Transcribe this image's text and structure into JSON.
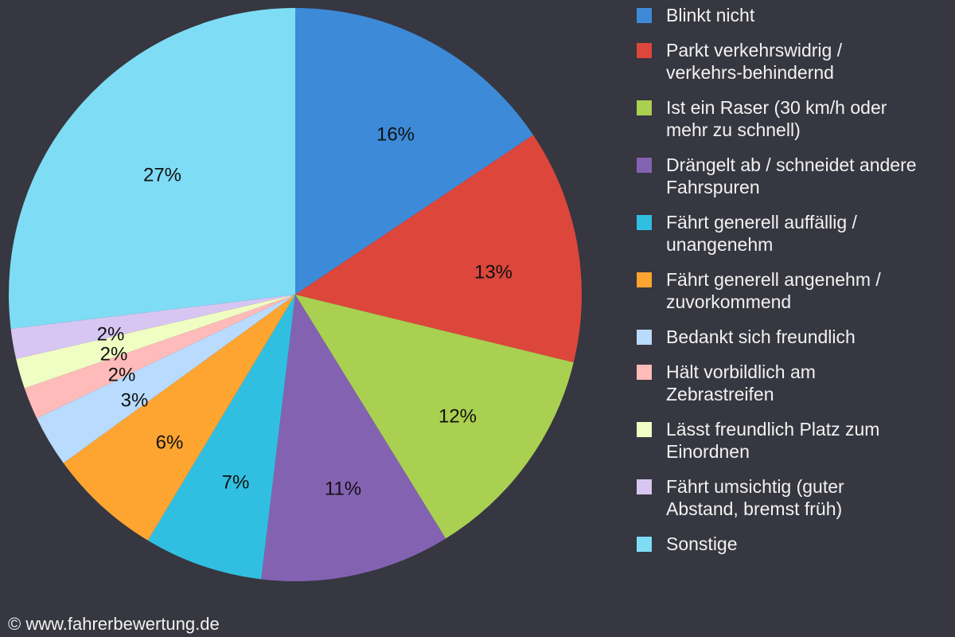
{
  "chart_data": {
    "type": "pie",
    "title": "",
    "start_angle": "12 o'clock, clockwise",
    "categories": [
      "Blinkt nicht",
      "Parkt verkehrswidrig / verkehrs-behindernd",
      "Ist ein Raser (30 km/h oder mehr zu schnell)",
      "Drängelt ab / schneidet andere Fahrspuren",
      "Fährt generell auffällig / unangenehm",
      "Fährt generell angenehm / zuvorkommend",
      "Bedankt sich freundlich",
      "Hält vorbildlich am Zebrastreifen",
      "Lässt freundlich Platz zum Einordnen",
      "Fährt umsichtig (guter Abstand, bremst früh)",
      "Sonstige"
    ],
    "values": [
      15.6,
      13.2,
      12.4,
      10.7,
      6.7,
      6.4,
      2.9,
      1.8,
      1.7,
      1.7,
      26.9
    ],
    "labels": [
      "16%",
      "13%",
      "12%",
      "11%",
      "7%",
      "6%",
      "3%",
      "2%",
      "2%",
      "2%",
      "27%"
    ],
    "colors": [
      "#3d8ad8",
      "#dc463b",
      "#a9d050",
      "#8462b2",
      "#31bfe1",
      "#fea431",
      "#b8dbfe",
      "#febbb9",
      "#f0fec3",
      "#d8c6f2",
      "#7fdcf5"
    ],
    "legend_position": "right"
  },
  "legend": {
    "items": [
      {
        "line1": "Blinkt nicht",
        "line2": ""
      },
      {
        "line1": "Parkt verkehrswidrig /",
        "line2": "verkehrs-behindernd"
      },
      {
        "line1": "Ist ein Raser (30 km/h oder",
        "line2": "mehr zu schnell)"
      },
      {
        "line1": "Drängelt ab / schneidet andere",
        "line2": "Fahrspuren"
      },
      {
        "line1": "Fährt generell auffällig /",
        "line2": "unangenehm"
      },
      {
        "line1": "Fährt generell angenehm /",
        "line2": "zuvorkommend"
      },
      {
        "line1": "Bedankt sich freundlich",
        "line2": ""
      },
      {
        "line1": "Hält vorbildlich am",
        "line2": "Zebrastreifen"
      },
      {
        "line1": "Lässt freundlich Platz zum",
        "line2": "Einordnen"
      },
      {
        "line1": "Fährt umsichtig (guter",
        "line2": "Abstand, bremst früh)"
      },
      {
        "line1": "Sonstige",
        "line2": ""
      }
    ]
  },
  "footer": {
    "copyright": "© www.fahrerbewertung.de"
  }
}
